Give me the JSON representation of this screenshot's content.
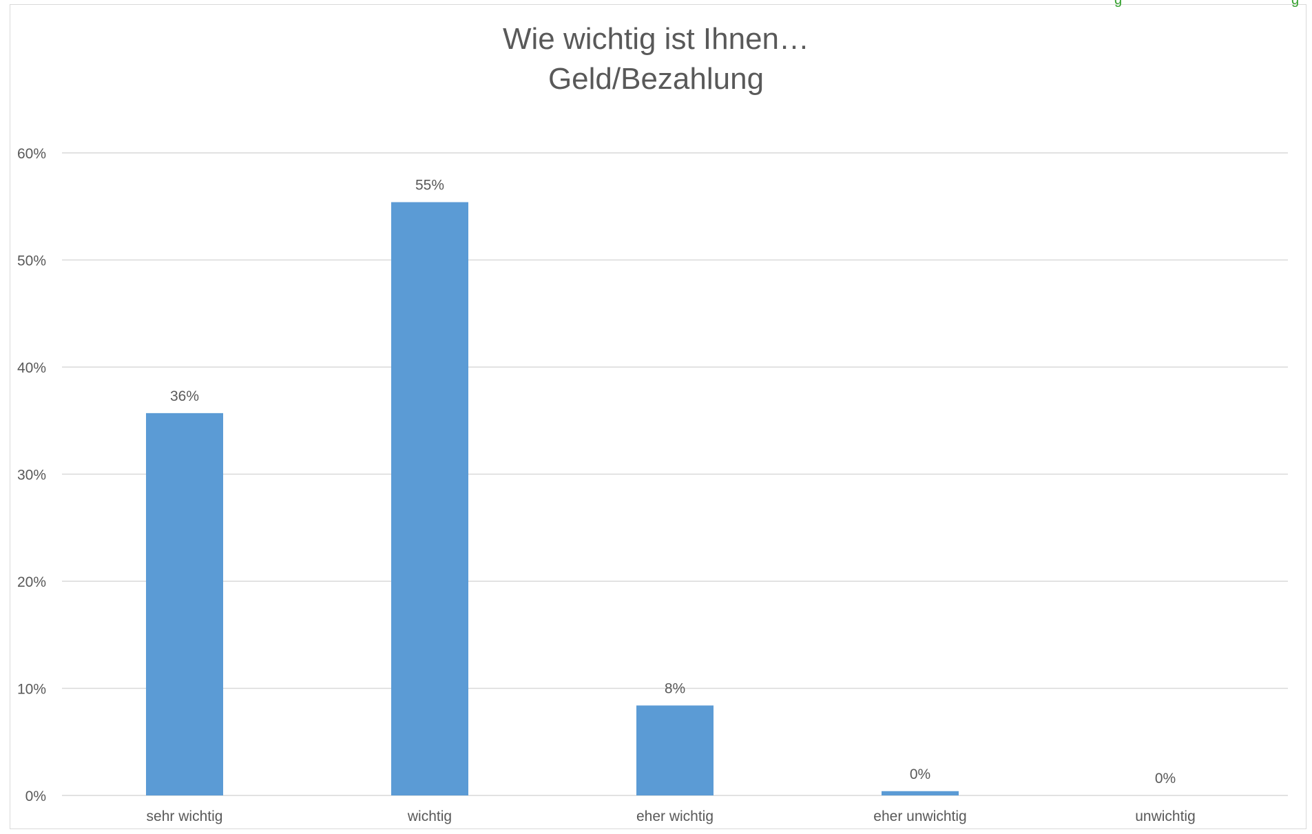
{
  "chart_data": {
    "type": "bar",
    "title": [
      "Wie wichtig ist Ihnen…",
      "Geld/Bezahlung"
    ],
    "categories": [
      "sehr wichtig",
      "wichtig",
      "eher wichtig",
      "eher unwichtig",
      "unwichtig"
    ],
    "values": [
      35.7,
      55.4,
      8.4,
      0.4,
      0.0
    ],
    "data_labels": [
      "36%",
      "55%",
      "8%",
      "0%",
      "0%"
    ],
    "ylim": [
      0,
      60
    ],
    "yticks": [
      0,
      10,
      20,
      30,
      40,
      50,
      60
    ],
    "ytick_labels": [
      "0%",
      "10%",
      "20%",
      "30%",
      "40%",
      "50%",
      "60%"
    ],
    "xlabel": "",
    "ylabel": "",
    "grid": true,
    "legend": "none",
    "colors": {
      "bar": "#5b9bd5",
      "grid": "#d9d9d9",
      "text": "#595959",
      "corner_text": "#33a02c"
    }
  },
  "corner_text": "g"
}
